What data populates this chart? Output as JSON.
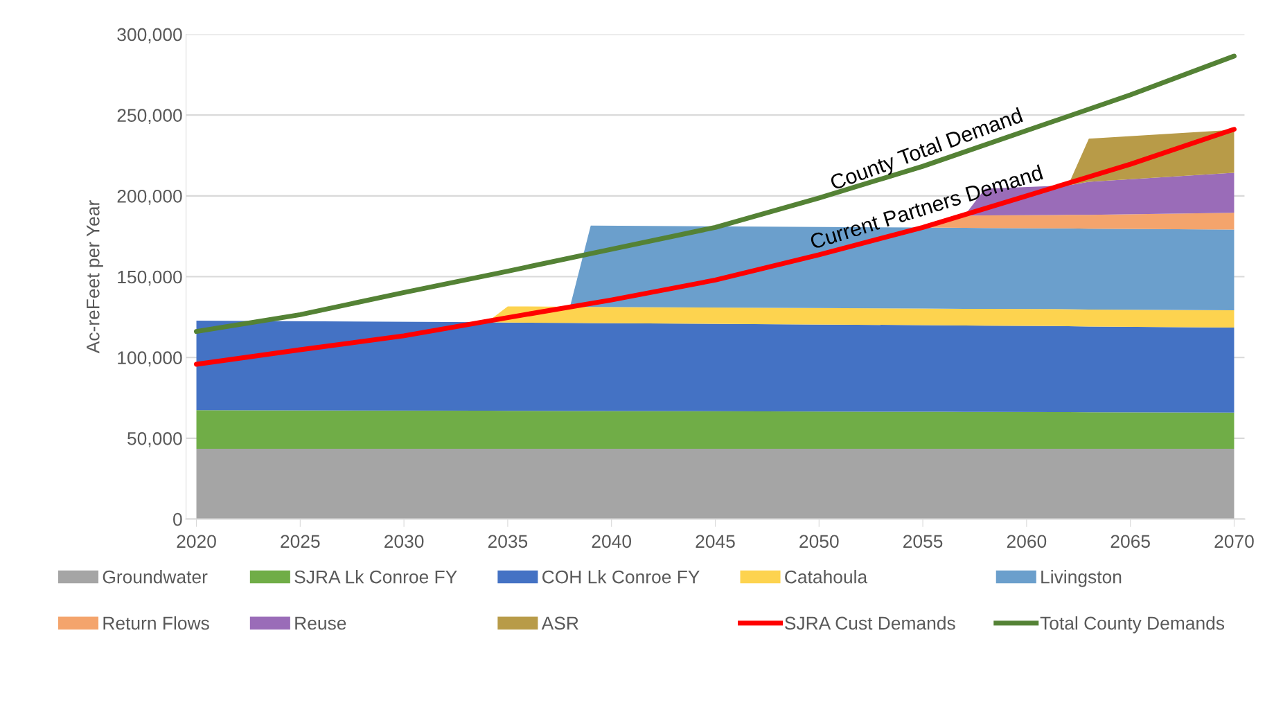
{
  "chart_data": {
    "type": "area",
    "stacked": true,
    "ylabel": "Ac-reFeet per Year",
    "x": [
      2020,
      2034,
      2035,
      2038,
      2039,
      2055,
      2056,
      2057,
      2058,
      2062,
      2063,
      2070
    ],
    "xlim": [
      2019.5,
      2070.5
    ],
    "xticks": [
      2020,
      2025,
      2030,
      2035,
      2040,
      2045,
      2050,
      2055,
      2060,
      2065,
      2070
    ],
    "ylim": [
      0,
      300000
    ],
    "yticks": [
      {
        "value": 0,
        "label": "0"
      },
      {
        "value": 50000,
        "label": "50,000"
      },
      {
        "value": 100000,
        "label": "100,000"
      },
      {
        "value": 150000,
        "label": "150,000"
      },
      {
        "value": 200000,
        "label": "200,000"
      },
      {
        "value": 250000,
        "label": "250,000"
      },
      {
        "value": 300000,
        "label": "300,000"
      }
    ],
    "grid": "y",
    "legend": "bottom",
    "series": [
      {
        "name": "Groundwater",
        "color": "#a5a5a5",
        "values": [
          43500,
          43500,
          43500,
          43500,
          43500,
          43500,
          43500,
          43500,
          43500,
          43500,
          43500,
          43500
        ]
      },
      {
        "name": "SJRA Lk Conroe FY",
        "color": "#70ad47",
        "values": [
          23900,
          23600,
          23500,
          23400,
          23400,
          22900,
          22900,
          22800,
          22800,
          22700,
          22600,
          22400
        ]
      },
      {
        "name": "COH Lk Conroe FY",
        "color": "#4472c4",
        "values": [
          55400,
          54700,
          54600,
          54500,
          54400,
          53600,
          53500,
          53500,
          53400,
          53200,
          53100,
          52600
        ]
      },
      {
        "name": "Catahoula",
        "color": "#fdd34f",
        "values": [
          0,
          0,
          10000,
          10000,
          10000,
          10300,
          10300,
          10300,
          10400,
          10500,
          10500,
          10700
        ]
      },
      {
        "name": "Livingston",
        "color": "#6b9fcc",
        "values": [
          0,
          0,
          0,
          0,
          50300,
          50100,
          50100,
          50100,
          50000,
          50000,
          50000,
          49900
        ]
      },
      {
        "name": "Return Flows",
        "color": "#f4a46c",
        "values": [
          0,
          0,
          0,
          0,
          0,
          0,
          4000,
          7500,
          7800,
          8300,
          8500,
          10500
        ]
      },
      {
        "name": "Reuse",
        "color": "#9a6cb8",
        "values": [
          0,
          0,
          0,
          0,
          0,
          0,
          0,
          0,
          16500,
          18300,
          20500,
          24700
        ]
      },
      {
        "name": "ASR",
        "color": "#b89b48",
        "values": [
          0,
          0,
          0,
          0,
          0,
          0,
          0,
          0,
          0,
          0,
          26700,
          26600
        ]
      },
      {
        "name": "SJRA Cust Demands",
        "type": "line",
        "color": "#ff0000",
        "x": [
          2020,
          2025,
          2030,
          2035,
          2040,
          2045,
          2050,
          2055,
          2060,
          2065,
          2070
        ],
        "values": [
          95800,
          104800,
          113400,
          124700,
          135600,
          147900,
          163600,
          180500,
          200000,
          219600,
          241200
        ]
      },
      {
        "name": "Total County Demands",
        "type": "line",
        "color": "#548235",
        "x": [
          2020,
          2025,
          2030,
          2035,
          2040,
          2045,
          2050,
          2055,
          2060,
          2065,
          2070
        ],
        "values": [
          116100,
          126500,
          140200,
          153400,
          167000,
          180500,
          198700,
          218300,
          240400,
          262500,
          286500
        ]
      }
    ],
    "annotations": [
      "County Total Demand",
      "Current Partners Demand"
    ]
  }
}
